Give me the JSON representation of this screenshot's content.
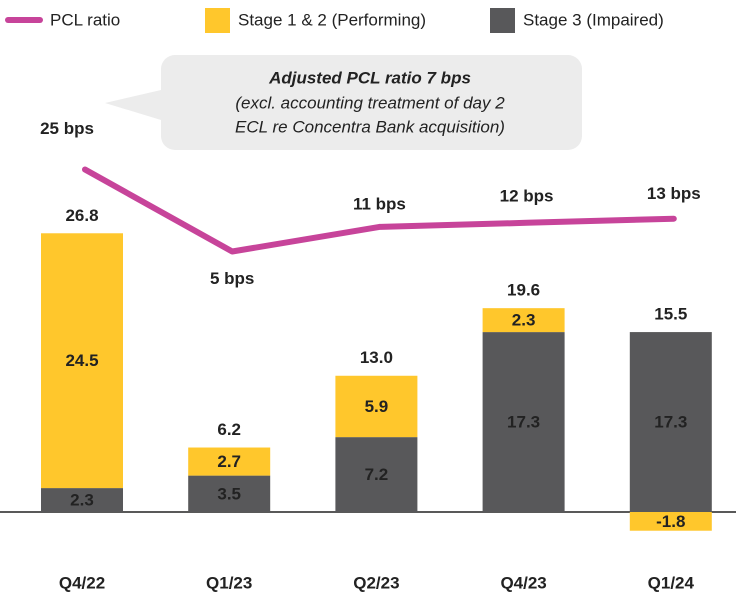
{
  "chart_data": {
    "type": "stacked_bar_line",
    "categories": [
      "Q4/22",
      "Q1/23",
      "Q2/23",
      "Q4/23",
      "Q1/24"
    ],
    "series": [
      {
        "name": "Stage 3 (Impaired)",
        "color": "#58585a",
        "values": [
          2.3,
          3.5,
          7.2,
          17.3,
          17.3
        ]
      },
      {
        "name": "Stage 1 & 2 (Performing)",
        "color": "#ffc72c",
        "values": [
          24.5,
          2.7,
          5.9,
          2.3,
          -1.8
        ]
      },
      {
        "name": "PCL ratio",
        "color": "#c7449a",
        "axis": "y2",
        "values": [
          25,
          5,
          11,
          12,
          13
        ],
        "value_labels": [
          "25 bps",
          "5 bps",
          "11 bps",
          "12 bps",
          "13 bps"
        ]
      }
    ],
    "totals": {
      "values": [
        26.8,
        6.2,
        13.0,
        19.6,
        15.5
      ],
      "value_labels": [
        "26.8",
        "6.2",
        "13.0",
        "19.6",
        "15.5"
      ]
    },
    "annotation": {
      "title": "Adjusted PCL ratio 7 bps",
      "lines": [
        "(excl. accounting treatment of day 2",
        "ECL re Concentra Bank acquisition)"
      ]
    },
    "ylim": [
      -5,
      30
    ],
    "y2lim": [
      0,
      60
    ]
  }
}
